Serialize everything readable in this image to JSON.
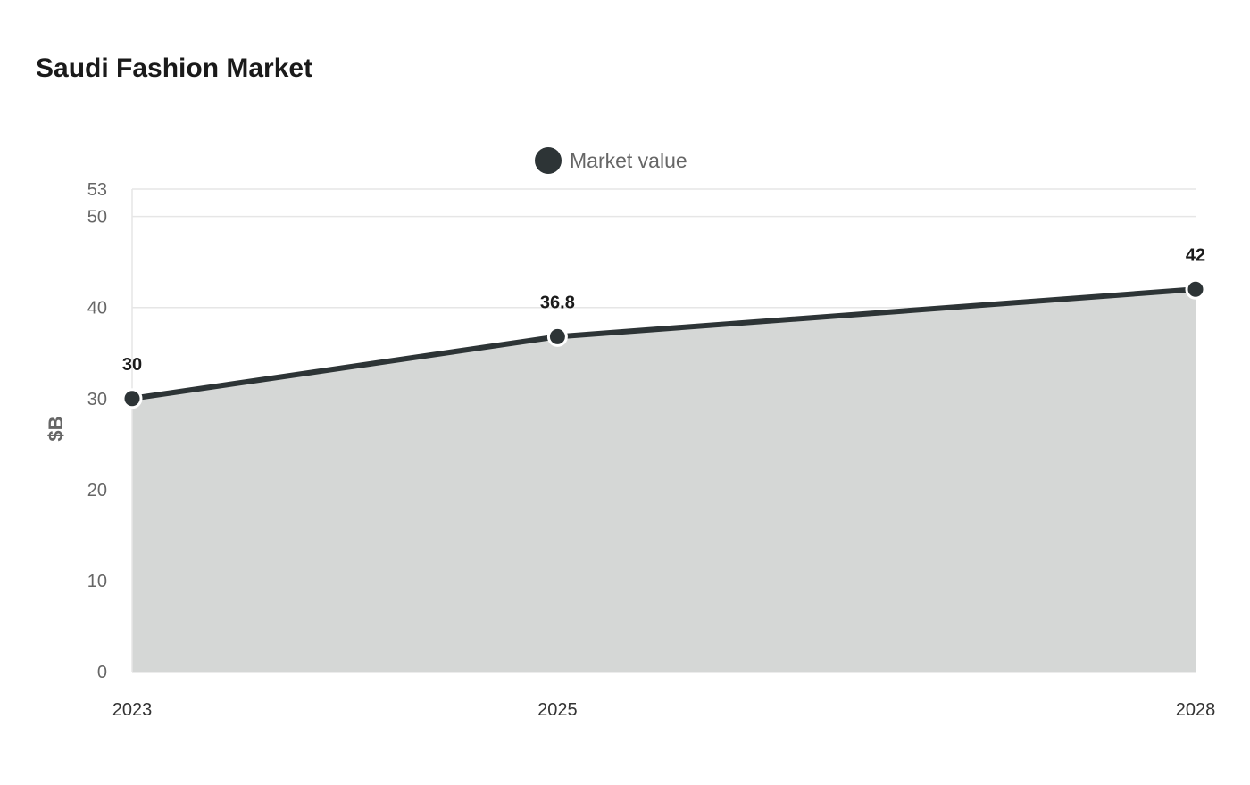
{
  "chart_data": {
    "type": "area",
    "title": "Saudi Fashion Market",
    "ylabel": "$B",
    "xlabel": "",
    "categories": [
      "2023",
      "2025",
      "2028"
    ],
    "x": [
      2023,
      2025,
      2028
    ],
    "series": [
      {
        "name": "Market value",
        "values": [
          30,
          36.8,
          42
        ],
        "color": "#2d3436"
      }
    ],
    "data_labels": [
      "30",
      "36.8",
      "42"
    ],
    "yticks": [
      0,
      10,
      20,
      30,
      40,
      50,
      53
    ],
    "ylim": [
      0,
      53
    ],
    "grid": true,
    "legend": "top-center",
    "colors": {
      "line": "#2d3436",
      "area": "#d5d7d6",
      "grid": "#e6e6e6"
    }
  }
}
